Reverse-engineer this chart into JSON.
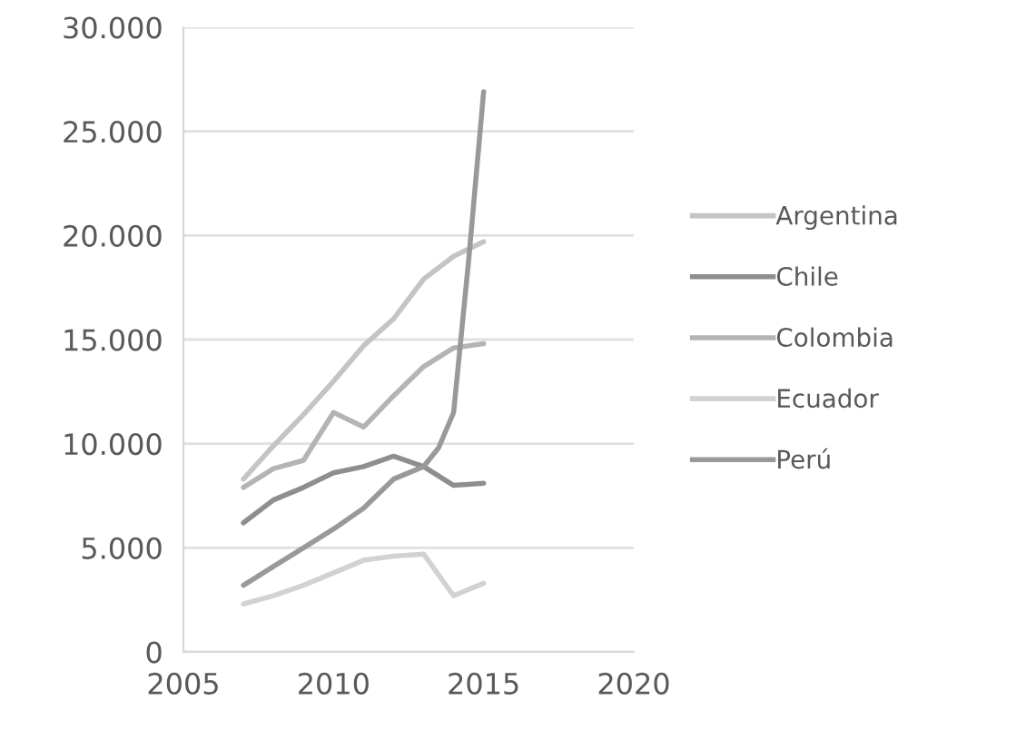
{
  "chart_data": {
    "type": "line",
    "x": [
      2007,
      2008,
      2009,
      2010,
      2011,
      2012,
      2013,
      2014,
      2015
    ],
    "series": [
      {
        "name": "Argentina",
        "color": "#c4c4c4",
        "values": [
          8300,
          9900,
          11400,
          13000,
          14700,
          16000,
          17900,
          19000,
          19700
        ]
      },
      {
        "name": "Chile",
        "color": "#8e8e8e",
        "values": [
          6200,
          7300,
          7900,
          8600,
          8900,
          9400,
          8900,
          8000,
          8100
        ]
      },
      {
        "name": "Colombia",
        "color": "#b4b4b4",
        "values": [
          7900,
          8800,
          9200,
          11500,
          10800,
          12300,
          13700,
          14600,
          14800
        ]
      },
      {
        "name": "Ecuador",
        "color": "#d2d2d2",
        "values": [
          2300,
          2700,
          3200,
          3800,
          4400,
          4600,
          4700,
          2700,
          3300
        ]
      },
      {
        "name": "Perú",
        "color": "#999999",
        "x": [
          2007,
          2008,
          2009,
          2010,
          2011,
          2012,
          2013,
          2013.5,
          2014,
          2014.5,
          2015
        ],
        "values": [
          3200,
          4100,
          5000,
          5900,
          6900,
          8300,
          8900,
          9800,
          11500,
          18800,
          26900
        ]
      }
    ],
    "xlim": [
      2005,
      2020
    ],
    "xticks": [
      2005,
      2010,
      2015,
      2020
    ],
    "ylim": [
      0,
      30000
    ],
    "yticks": [
      0,
      {
        "value": 5000,
        "label": "5.000"
      },
      {
        "value": 10000,
        "label": "10.000"
      },
      {
        "value": 15000,
        "label": "15.000"
      },
      {
        "value": 20000,
        "label": "20.000"
      },
      {
        "value": 25000,
        "label": "25.000"
      },
      {
        "value": 30000,
        "label": "30.000"
      }
    ],
    "grid": "y",
    "legend": "right",
    "marker": "none",
    "line_style": "solid"
  }
}
